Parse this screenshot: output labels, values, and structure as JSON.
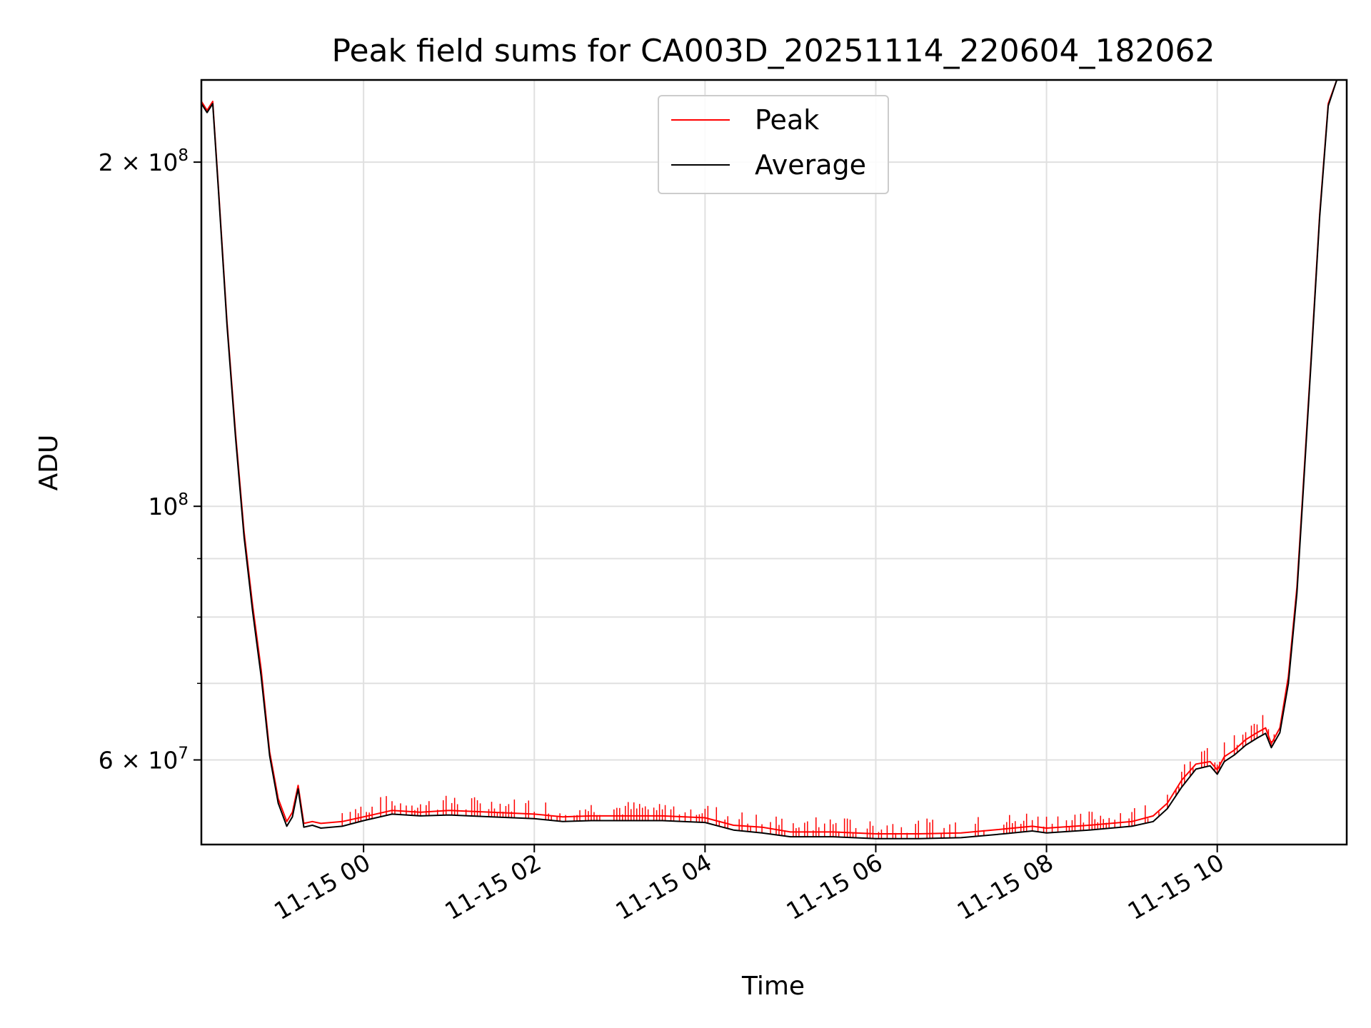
{
  "chart_data": {
    "type": "line",
    "title": "Peak field sums for CA003D_20251114_220604_182062",
    "xlabel": "Time",
    "ylabel": "ADU",
    "y_scale": "log",
    "ylim": [
      50600000,
      236000000
    ],
    "xlim": [
      "2025-11-14 22:06",
      "2025-11-15 11:31"
    ],
    "grid": true,
    "legend_position": "top-center",
    "x_ticks": [
      {
        "t": "2025-11-15 00:00",
        "label": "11-15 00"
      },
      {
        "t": "2025-11-15 02:00",
        "label": "11-15 02"
      },
      {
        "t": "2025-11-15 04:00",
        "label": "11-15 04"
      },
      {
        "t": "2025-11-15 06:00",
        "label": "11-15 06"
      },
      {
        "t": "2025-11-15 08:00",
        "label": "11-15 08"
      },
      {
        "t": "2025-11-15 10:00",
        "label": "11-15 10"
      }
    ],
    "y_ticks": [
      {
        "v": 200000000,
        "label_main": "2 × 10",
        "label_exp": "8"
      },
      {
        "v": 100000000,
        "label_main": "10",
        "label_exp": "8"
      },
      {
        "v": 60000000,
        "label_main": "6 × 10",
        "label_exp": "7"
      }
    ],
    "y_minor_ticks": [
      90000000,
      80000000,
      70000000
    ],
    "series": [
      {
        "name": "Peak",
        "color": "#ff0000",
        "x": [
          "2025-11-14 22:06",
          "2025-11-14 22:10",
          "2025-11-14 22:14",
          "2025-11-14 22:18",
          "2025-11-14 22:24",
          "2025-11-14 22:30",
          "2025-11-14 22:36",
          "2025-11-14 22:42",
          "2025-11-14 22:48",
          "2025-11-14 22:54",
          "2025-11-14 23:00",
          "2025-11-14 23:06",
          "2025-11-14 23:10",
          "2025-11-14 23:14",
          "2025-11-14 23:18",
          "2025-11-14 23:24",
          "2025-11-14 23:30",
          "2025-11-14 23:45",
          "2025-11-15 00:00",
          "2025-11-15 00:20",
          "2025-11-15 00:40",
          "2025-11-15 01:00",
          "2025-11-15 01:30",
          "2025-11-15 02:00",
          "2025-11-15 02:20",
          "2025-11-15 02:40",
          "2025-11-15 03:00",
          "2025-11-15 03:30",
          "2025-11-15 04:00",
          "2025-11-15 04:20",
          "2025-11-15 04:40",
          "2025-11-15 05:00",
          "2025-11-15 05:30",
          "2025-11-15 06:00",
          "2025-11-15 06:30",
          "2025-11-15 07:00",
          "2025-11-15 07:30",
          "2025-11-15 07:50",
          "2025-11-15 08:00",
          "2025-11-15 08:30",
          "2025-11-15 09:00",
          "2025-11-15 09:15",
          "2025-11-15 09:25",
          "2025-11-15 09:35",
          "2025-11-15 09:45",
          "2025-11-15 09:55",
          "2025-11-15 10:00",
          "2025-11-15 10:05",
          "2025-11-15 10:12",
          "2025-11-15 10:20",
          "2025-11-15 10:28",
          "2025-11-15 10:34",
          "2025-11-15 10:38",
          "2025-11-15 10:44",
          "2025-11-15 10:50",
          "2025-11-15 10:56",
          "2025-11-15 11:00",
          "2025-11-15 11:06",
          "2025-11-15 11:12",
          "2025-11-15 11:18",
          "2025-11-15 11:24"
        ],
        "values": [
          226000000,
          222000000,
          226000000,
          190000000,
          145000000,
          116000000,
          95000000,
          82000000,
          72000000,
          61000000,
          55500000,
          53000000,
          54000000,
          57000000,
          52800000,
          53000000,
          52800000,
          53000000,
          53500000,
          54200000,
          54000000,
          54200000,
          54000000,
          53800000,
          53500000,
          53600000,
          53600000,
          53600000,
          53400000,
          52600000,
          52400000,
          51900000,
          51900000,
          51700000,
          51700000,
          51800000,
          52200000,
          52500000,
          52300000,
          52600000,
          53000000,
          53600000,
          55000000,
          57600000,
          59500000,
          59800000,
          58800000,
          60400000,
          61200000,
          62500000,
          63400000,
          64000000,
          62000000,
          64000000,
          71000000,
          85000000,
          102000000,
          135000000,
          180000000,
          225000000,
          236000000
        ]
      },
      {
        "name": "Average",
        "color": "#000000",
        "x": [
          "2025-11-14 22:06",
          "2025-11-14 22:10",
          "2025-11-14 22:14",
          "2025-11-14 22:18",
          "2025-11-14 22:24",
          "2025-11-14 22:30",
          "2025-11-14 22:36",
          "2025-11-14 22:42",
          "2025-11-14 22:48",
          "2025-11-14 22:54",
          "2025-11-14 23:00",
          "2025-11-14 23:06",
          "2025-11-14 23:10",
          "2025-11-14 23:14",
          "2025-11-14 23:18",
          "2025-11-14 23:24",
          "2025-11-14 23:30",
          "2025-11-14 23:45",
          "2025-11-15 00:00",
          "2025-11-15 00:20",
          "2025-11-15 00:40",
          "2025-11-15 01:00",
          "2025-11-15 01:30",
          "2025-11-15 02:00",
          "2025-11-15 02:20",
          "2025-11-15 02:40",
          "2025-11-15 03:00",
          "2025-11-15 03:30",
          "2025-11-15 04:00",
          "2025-11-15 04:20",
          "2025-11-15 04:40",
          "2025-11-15 05:00",
          "2025-11-15 05:30",
          "2025-11-15 06:00",
          "2025-11-15 06:30",
          "2025-11-15 07:00",
          "2025-11-15 07:30",
          "2025-11-15 07:50",
          "2025-11-15 08:00",
          "2025-11-15 08:30",
          "2025-11-15 09:00",
          "2025-11-15 09:15",
          "2025-11-15 09:25",
          "2025-11-15 09:35",
          "2025-11-15 09:45",
          "2025-11-15 09:55",
          "2025-11-15 10:00",
          "2025-11-15 10:05",
          "2025-11-15 10:12",
          "2025-11-15 10:20",
          "2025-11-15 10:28",
          "2025-11-15 10:34",
          "2025-11-15 10:38",
          "2025-11-15 10:44",
          "2025-11-15 10:50",
          "2025-11-15 10:56",
          "2025-11-15 11:00",
          "2025-11-15 11:06",
          "2025-11-15 11:12",
          "2025-11-15 11:18",
          "2025-11-15 11:24"
        ],
        "values": [
          225000000,
          221000000,
          225000000,
          189000000,
          144000000,
          115000000,
          94000000,
          81000000,
          71000000,
          60500000,
          55000000,
          52500000,
          53500000,
          56600000,
          52400000,
          52600000,
          52300000,
          52500000,
          53100000,
          53800000,
          53600000,
          53700000,
          53500000,
          53300000,
          53000000,
          53100000,
          53100000,
          53100000,
          52900000,
          52100000,
          51800000,
          51400000,
          51400000,
          51200000,
          51200000,
          51300000,
          51700000,
          52000000,
          51800000,
          52100000,
          52500000,
          53000000,
          54400000,
          56800000,
          58900000,
          59300000,
          58300000,
          59800000,
          60600000,
          61800000,
          62700000,
          63300000,
          61500000,
          63400000,
          70000000,
          84000000,
          101000000,
          134000000,
          179000000,
          224000000,
          236000000
        ]
      }
    ]
  }
}
